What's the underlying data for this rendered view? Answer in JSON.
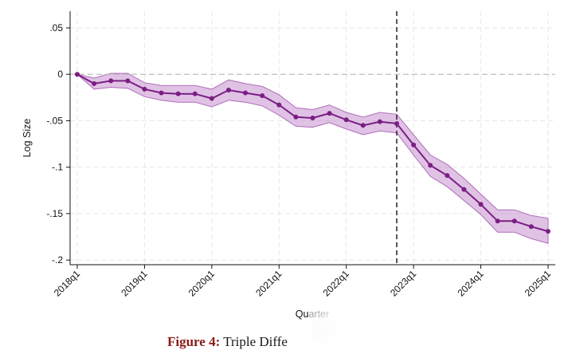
{
  "chart_data": {
    "type": "line",
    "title": "",
    "xlabel": "Quarter",
    "ylabel": "Log Size",
    "ylim": [
      -0.205,
      0.068
    ],
    "yticks": [
      0.05,
      0,
      -0.05,
      -0.1,
      -0.15,
      -0.2
    ],
    "ytick_labels": [
      ".05",
      "0",
      "-.05",
      "-.1",
      "-.15",
      "-.2"
    ],
    "xticks": [
      "2018q1",
      "2019q1",
      "2020q1",
      "2021q1",
      "2022q1",
      "2023q1",
      "2024q1",
      "2025q1"
    ],
    "grid": true,
    "reference_line_y": 0,
    "event_quarter": "2022q4",
    "color_line": "#7a1e84",
    "color_band": "#c78fd0",
    "x": [
      "2018q1",
      "2018q2",
      "2018q3",
      "2018q4",
      "2019q1",
      "2019q2",
      "2019q3",
      "2019q4",
      "2020q1",
      "2020q2",
      "2020q3",
      "2020q4",
      "2021q1",
      "2021q2",
      "2021q3",
      "2021q4",
      "2022q1",
      "2022q2",
      "2022q3",
      "2022q4",
      "2023q1",
      "2023q2",
      "2023q3",
      "2023q4",
      "2024q1",
      "2024q2",
      "2024q3",
      "2024q4",
      "2025q1"
    ],
    "series": [
      {
        "values": [
          0,
          -0.01,
          -0.007,
          -0.007,
          -0.016,
          -0.02,
          -0.021,
          -0.021,
          -0.026,
          -0.017,
          -0.02,
          -0.023,
          -0.033,
          -0.046,
          -0.047,
          -0.042,
          -0.049,
          -0.055,
          -0.051,
          -0.053,
          -0.076,
          -0.098,
          -0.109,
          -0.124,
          -0.14,
          -0.158,
          -0.158,
          -0.164,
          -0.169
        ],
        "ci_upper": [
          0,
          -0.004,
          0.001,
          0.001,
          -0.009,
          -0.012,
          -0.012,
          -0.012,
          -0.016,
          -0.006,
          -0.01,
          -0.013,
          -0.022,
          -0.036,
          -0.038,
          -0.033,
          -0.041,
          -0.046,
          -0.041,
          -0.043,
          -0.065,
          -0.087,
          -0.097,
          -0.112,
          -0.129,
          -0.146,
          -0.146,
          -0.152,
          -0.155
        ],
        "ci_lower": [
          0,
          -0.016,
          -0.014,
          -0.015,
          -0.024,
          -0.028,
          -0.03,
          -0.03,
          -0.035,
          -0.028,
          -0.03,
          -0.034,
          -0.044,
          -0.056,
          -0.057,
          -0.052,
          -0.059,
          -0.065,
          -0.061,
          -0.063,
          -0.087,
          -0.11,
          -0.121,
          -0.136,
          -0.151,
          -0.17,
          -0.17,
          -0.177,
          -0.182
        ]
      }
    ]
  },
  "caption": {
    "figure_label": "Figure 4:",
    "text": "Triple Diffe"
  }
}
